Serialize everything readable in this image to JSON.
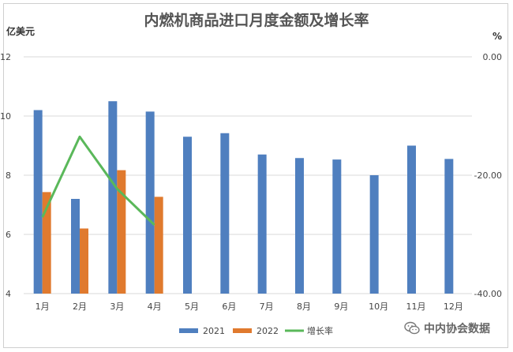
{
  "chart_data": {
    "type": "bar",
    "title": "内燃机商品进口月度金额及增长率",
    "ylabel_left": "亿美元",
    "ylabel_right": "%",
    "categories": [
      "1月",
      "2月",
      "3月",
      "4月",
      "5月",
      "6月",
      "7月",
      "8月",
      "9月",
      "10月",
      "11月",
      "12月"
    ],
    "y_left": {
      "min": 4,
      "max": 12,
      "ticks": [
        "4",
        "6",
        "8",
        "10",
        "12"
      ]
    },
    "y_right": {
      "min": -40,
      "max": 0,
      "ticks": [
        "0.00",
        "-20.00",
        "-40.00"
      ]
    },
    "series": [
      {
        "name": "2021",
        "kind": "bar",
        "axis": "left",
        "color": "#4f7fbf",
        "values": [
          10.2,
          7.2,
          10.5,
          10.15,
          9.3,
          9.42,
          8.7,
          8.58,
          8.53,
          8.0,
          9.0,
          8.55
        ]
      },
      {
        "name": "2022",
        "kind": "bar",
        "axis": "left",
        "color": "#e07a2e",
        "values": [
          7.43,
          6.2,
          8.17,
          7.27,
          null,
          null,
          null,
          null,
          null,
          null,
          null,
          null
        ]
      },
      {
        "name": "增长率",
        "kind": "line",
        "axis": "right",
        "color": "#5ab85a",
        "values": [
          -27.1,
          -13.5,
          -22.3,
          -28.4,
          null,
          null,
          null,
          null,
          null,
          null,
          null,
          null
        ]
      }
    ],
    "grid": true,
    "legend": "bottom"
  },
  "watermark": {
    "text": "中内协会数据",
    "icon": "wechat-icon"
  }
}
